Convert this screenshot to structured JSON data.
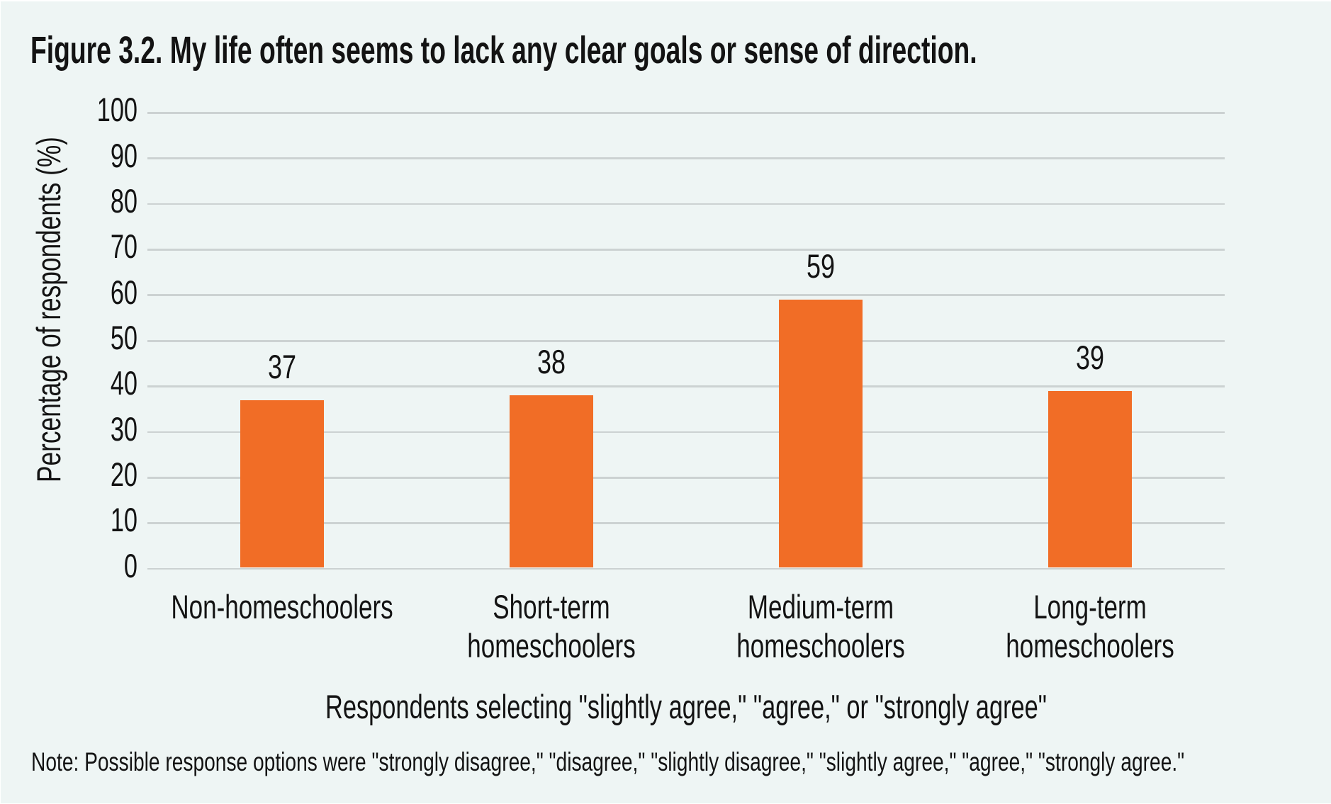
{
  "chart_data": {
    "type": "bar",
    "title": "Figure 3.2. My life often seems to lack any clear goals or sense of direction.",
    "categories": [
      "Non-homeschoolers",
      "Short-term homeschoolers",
      "Medium-term homeschoolers",
      "Long-term homeschoolers"
    ],
    "values": [
      37,
      38,
      59,
      39
    ],
    "bar_labels": [
      "37",
      "38",
      "59",
      "39"
    ],
    "xlabel": "Respondents selecting \"slightly agree,\" \"agree,\" or \"strongly agree\"",
    "ylabel": "Percentage of respondents (%)",
    "ylim": [
      0,
      100
    ],
    "yticks": [
      0,
      10,
      20,
      30,
      40,
      50,
      60,
      70,
      80,
      90,
      100
    ],
    "grid": "horizontal",
    "legend": "none",
    "note": "Note: Possible response options were \"strongly disagree,\" \"disagree,\" \"slightly disagree,\" \"slightly agree,\" \"agree,\" \"strongly agree.\"",
    "bar_color": "#f16d26",
    "background_color": "#eef5f4",
    "gridline_color": "#ccd2d2",
    "text_color": "#131313"
  }
}
